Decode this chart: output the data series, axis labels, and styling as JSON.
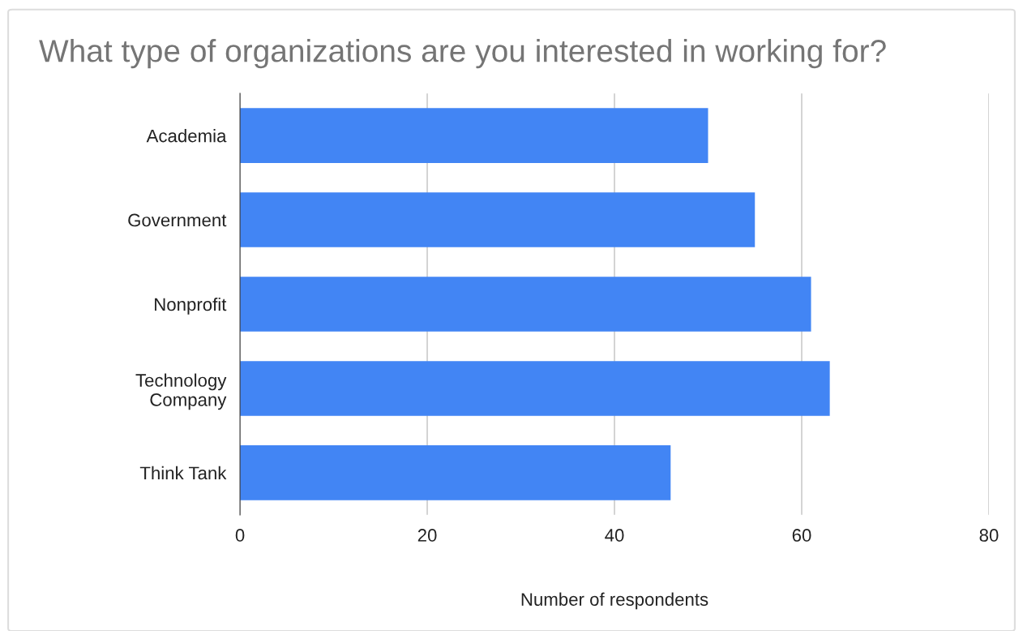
{
  "chart_data": {
    "type": "bar",
    "orientation": "horizontal",
    "title": "What type of organizations are you interested in working for?",
    "xlabel": "Number of respondents",
    "categories": [
      "Academia",
      "Government",
      "Nonprofit",
      "Technology\nCompany",
      "Think Tank"
    ],
    "values": [
      50,
      55,
      61,
      63,
      46
    ],
    "color": "#4285f4",
    "xlim": [
      0,
      80
    ],
    "xticks": [
      0,
      20,
      40,
      60,
      80
    ],
    "grid": "x",
    "legend": false
  }
}
